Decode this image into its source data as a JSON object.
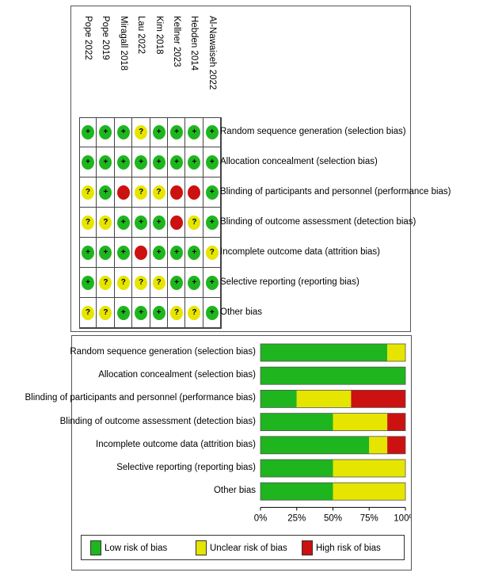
{
  "studies": [
    "Pope 2022",
    "Pope 2019",
    "Miragall 2018",
    "Lau 2022",
    "Kim 2018",
    "Kellner 2023",
    "Hebden 2014",
    "Al-Nawaiseh 2022"
  ],
  "domains": [
    "Random sequence generation (selection bias)",
    "Allocation concealment (selection bias)",
    "Blinding of participants and personnel (performance bias)",
    "Blinding of outcome assessment (detection bias)",
    "Incomplete outcome data (attrition bias)",
    "Selective reporting (reporting bias)",
    "Other bias"
  ],
  "judgements": [
    [
      "low",
      "low",
      "low",
      "unclear",
      "low",
      "low",
      "low",
      "low"
    ],
    [
      "low",
      "low",
      "low",
      "low",
      "low",
      "low",
      "low",
      "low"
    ],
    [
      "unclear",
      "low",
      "high",
      "unclear",
      "unclear",
      "high",
      "high",
      "low"
    ],
    [
      "unclear",
      "unclear",
      "low",
      "low",
      "low",
      "high",
      "unclear",
      "low"
    ],
    [
      "low",
      "low",
      "low",
      "high",
      "low",
      "low",
      "low",
      "unclear"
    ],
    [
      "low",
      "unclear",
      "unclear",
      "unclear",
      "unclear",
      "low",
      "low",
      "low"
    ],
    [
      "unclear",
      "unclear",
      "low",
      "low",
      "low",
      "unclear",
      "unclear",
      "low"
    ]
  ],
  "symbols": {
    "low": "+",
    "unclear": "?",
    "high": ""
  },
  "colors": {
    "low": "#1fb51f",
    "unclear": "#e5e500",
    "high": "#cc1111"
  },
  "chart_data": {
    "type": "bar",
    "orientation": "horizontal-stacked-percent",
    "categories": [
      "Random sequence generation (selection bias)",
      "Allocation concealment (selection bias)",
      "Blinding of participants and personnel (performance bias)",
      "Blinding of outcome assessment (detection bias)",
      "Incomplete outcome data (attrition bias)",
      "Selective reporting (reporting bias)",
      "Other bias"
    ],
    "series": [
      {
        "name": "Low risk of bias",
        "key": "low",
        "values": [
          87.5,
          100,
          25,
          50,
          75,
          50,
          50
        ]
      },
      {
        "name": "Unclear risk of bias",
        "key": "unclear",
        "values": [
          12.5,
          0,
          37.5,
          37.5,
          12.5,
          50,
          50
        ]
      },
      {
        "name": "High risk of bias",
        "key": "high",
        "values": [
          0,
          0,
          37.5,
          12.5,
          12.5,
          0,
          0
        ]
      }
    ],
    "xticks": [
      "0%",
      "25%",
      "50%",
      "75%",
      "100%"
    ],
    "xlim": [
      0,
      100
    ]
  }
}
